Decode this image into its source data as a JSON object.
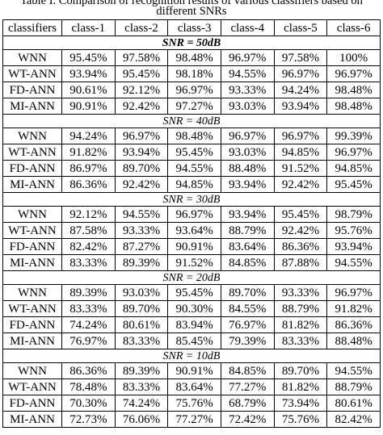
{
  "title": [
    "Table I. Comparison of recognition results of various classifiers based on",
    "different SNRs"
  ],
  "table": {
    "header": [
      "classifiers",
      "class-1",
      "class-2",
      "class-3",
      "class-4",
      "class-5",
      "class-6"
    ],
    "groups": [
      {
        "label": "SNR = 50dB",
        "rows": [
          [
            "WNN",
            "95.45%",
            "97.58%",
            "98.48%",
            "96.97%",
            "97.58%",
            "100%"
          ],
          [
            "WT-ANN",
            "93.94%",
            "95.45%",
            "98.18%",
            "94.55%",
            "96.97%",
            "96.97%"
          ],
          [
            "FD-ANN",
            "90.61%",
            "92.12%",
            "96.97%",
            "93.33%",
            "94.24%",
            "98.48%"
          ],
          [
            "MI-ANN",
            "90.91%",
            "92.42%",
            "97.27%",
            "93.03%",
            "93.94%",
            "98.48%"
          ]
        ]
      },
      {
        "label": "SNR = 40dB",
        "rows": [
          [
            "WNN",
            "94.24%",
            "96.97%",
            "98.48%",
            "96.97%",
            "96.97%",
            "99.39%"
          ],
          [
            "WT-ANN",
            "91.82%",
            "93.94%",
            "95.45%",
            "93.03%",
            "94.85%",
            "96.97%"
          ],
          [
            "FD-ANN",
            "86.97%",
            "89.70%",
            "94.55%",
            "88.48%",
            "91.52%",
            "94.85%"
          ],
          [
            "MI-ANN",
            "86.36%",
            "92.42%",
            "94.85%",
            "93.94%",
            "92.42%",
            "95.45%"
          ]
        ]
      },
      {
        "label": "SNR = 30dB",
        "rows": [
          [
            "WNN",
            "92.12%",
            "94.55%",
            "96.97%",
            "93.94%",
            "95.45%",
            "98.79%"
          ],
          [
            "WT-ANN",
            "87.58%",
            "93.33%",
            "93.64%",
            "88.79%",
            "92.42%",
            "95.76%"
          ],
          [
            "FD-ANN",
            "82.42%",
            "87.27%",
            "90.91%",
            "83.64%",
            "86.36%",
            "93.94%"
          ],
          [
            "MI-ANN",
            "83.33%",
            "89.39%",
            "91.52%",
            "84.85%",
            "87.88%",
            "94.55%"
          ]
        ]
      },
      {
        "label": "SNR = 20dB",
        "rows": [
          [
            "WNN",
            "89.39%",
            "93.03%",
            "95.45%",
            "89.70%",
            "93.33%",
            "96.97%"
          ],
          [
            "WT-ANN",
            "83.33%",
            "89.70%",
            "90.30%",
            "84.55%",
            "88.79%",
            "91.82%"
          ],
          [
            "FD-ANN",
            "74.24%",
            "80.61%",
            "83.94%",
            "76.97%",
            "81.82%",
            "86.36%"
          ],
          [
            "MI-ANN",
            "76.97%",
            "83.33%",
            "85.45%",
            "79.39%",
            "83.33%",
            "88.48%"
          ]
        ]
      },
      {
        "label": "SNR = 10dB",
        "rows": [
          [
            "WNN",
            "86.36%",
            "89.39%",
            "90.91%",
            "84.85%",
            "89.70%",
            "94.55%"
          ],
          [
            "WT-ANN",
            "78.48%",
            "83.33%",
            "83.64%",
            "77.27%",
            "81.82%",
            "88.79%"
          ],
          [
            "FD-ANN",
            "70.30%",
            "74.24%",
            "75.76%",
            "68.79%",
            "73.94%",
            "80.61%"
          ],
          [
            "MI-ANN",
            "72.73%",
            "76.06%",
            "77.27%",
            "72.42%",
            "75.76%",
            "82.42%"
          ]
        ]
      }
    ]
  }
}
